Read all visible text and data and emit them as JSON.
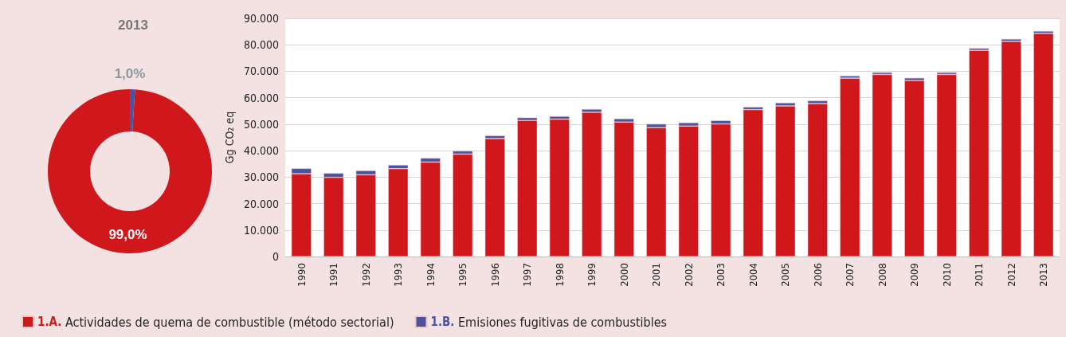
{
  "chart_data": [
    {
      "type": "donut",
      "title": "2013",
      "categories": [
        null,
        null
      ],
      "values": [
        99.0,
        1.0
      ],
      "colors": [
        "#cf171c",
        "#4b539c"
      ],
      "value_labels": [
        "99,0%",
        "1,0%"
      ],
      "legend": false
    },
    {
      "type": "bar",
      "stacked": true,
      "ylabel": "Gg CO₂ eq",
      "categories": [
        "1990",
        "1991",
        "1992",
        "1993",
        "1994",
        "1995",
        "1996",
        "1997",
        "1998",
        "1999",
        "2000",
        "2001",
        "2002",
        "2003",
        "2004",
        "2005",
        "2006",
        "2007",
        "2008",
        "2009",
        "2010",
        "2011",
        "2012",
        "2013"
      ],
      "series": [
        {
          "name": "1.A. Actividades de quema de combustible (método sectorial)",
          "color": "#cf171c",
          "values": [
            31300,
            29900,
            30900,
            33200,
            35700,
            38700,
            44600,
            51400,
            51900,
            54500,
            50800,
            48700,
            49300,
            50100,
            55500,
            56900,
            57800,
            67400,
            68800,
            66500,
            68800,
            77900,
            81300,
            84300
          ]
        },
        {
          "name": "1.B. Emisiones fugitivas de combustibles",
          "color": "#4b539c",
          "values": [
            2000,
            1600,
            1600,
            1400,
            1500,
            1200,
            1100,
            1100,
            1100,
            1200,
            1300,
            1400,
            1300,
            1300,
            1000,
            1200,
            1100,
            900,
            800,
            1000,
            800,
            800,
            900,
            900
          ]
        }
      ],
      "ylim": [
        0,
        90000
      ],
      "yticks": [
        {
          "value": 0,
          "label": "0"
        },
        {
          "value": 10000,
          "label": "10.000"
        },
        {
          "value": 20000,
          "label": "20.000"
        },
        {
          "value": 30000,
          "label": "30.000"
        },
        {
          "value": 40000,
          "label": "40.000"
        },
        {
          "value": 50000,
          "label": "50.000"
        },
        {
          "value": 60000,
          "label": "60.000"
        },
        {
          "value": 70000,
          "label": "70.000"
        },
        {
          "value": 80000,
          "label": "80.000"
        },
        {
          "value": 90000,
          "label": "90.000"
        }
      ],
      "grid": "y",
      "legend": "bottom"
    }
  ]
}
